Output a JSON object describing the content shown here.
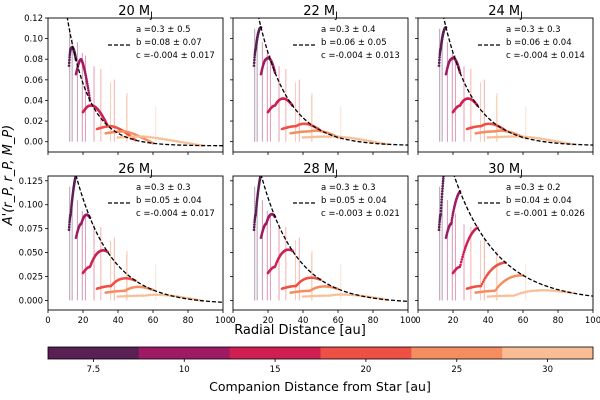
{
  "chart_data": {
    "type": "scatter",
    "figure": {
      "ylabel": "A'(r_P, r_P, M_P)",
      "xlabel": "Radial Distance [au]",
      "colorbar_label": "Companion Distance from Star [au]",
      "xlim": [
        0,
        100
      ],
      "xticks": [
        0,
        20,
        40,
        60,
        80,
        100
      ],
      "ylim_top_row": [
        -0.01,
        0.12
      ],
      "yticks_top_row": [
        "0.00",
        "0.02",
        "0.04",
        "0.06",
        "0.08",
        "0.10",
        "0.12"
      ],
      "ylim_bottom_row": [
        -0.01,
        0.13
      ],
      "yticks_bottom_row": [
        "0.000",
        "0.025",
        "0.050",
        "0.075",
        "0.100",
        "0.125"
      ],
      "legend_placement": "top-right of each panel"
    },
    "colorbar": {
      "ticks": [
        "7.5",
        "10",
        "15",
        "20",
        "25",
        "30"
      ],
      "colors": [
        "#5a1f53",
        "#9e1a63",
        "#cf1f52",
        "#ee5045",
        "#f68d60",
        "#f8bd95"
      ]
    },
    "panels": [
      {
        "title_num": "20",
        "title_sub": "J",
        "a": "a =0.3 ± 0.5",
        "b": "b =0.08 ± 0.07",
        "c": "c =-0.004 ± 0.017",
        "fit": {
          "a": 0.3,
          "b": 0.08,
          "c": -0.004
        }
      },
      {
        "title_num": "22",
        "title_sub": "J",
        "a": "a =0.3 ± 0.4",
        "b": "b =0.06 ± 0.05",
        "c": "c =-0.004 ± 0.013",
        "fit": {
          "a": 0.3,
          "b": 0.06,
          "c": -0.004
        }
      },
      {
        "title_num": "24",
        "title_sub": "J",
        "a": "a =0.3 ± 0.3",
        "b": "b =0.06 ± 0.04",
        "c": "c =-0.004 ± 0.014",
        "fit": {
          "a": 0.3,
          "b": 0.06,
          "c": -0.004
        }
      },
      {
        "title_num": "26",
        "title_sub": "J",
        "a": "a =0.3 ± 0.3",
        "b": "b =0.05 ± 0.04",
        "c": "c =-0.004 ± 0.017",
        "fit": {
          "a": 0.3,
          "b": 0.05,
          "c": -0.004
        }
      },
      {
        "title_num": "28",
        "title_sub": "J",
        "a": "a =0.3 ± 0.3",
        "b": "b =0.05 ± 0.04",
        "c": "c =-0.003 ± 0.021",
        "fit": {
          "a": 0.3,
          "b": 0.05,
          "c": -0.003
        }
      },
      {
        "title_num": "30",
        "title_sub": "J",
        "a": "a =0.3 ± 0.2",
        "b": "b =0.04 ± 0.04",
        "c": "c =-0.001 ± 0.026",
        "fit": {
          "a": 0.3,
          "b": 0.04,
          "c": -0.001
        }
      }
    ],
    "companion_series": [
      {
        "companion_au": 7.5,
        "color": "#5a1f53",
        "x_start": 12,
        "x_end": 16,
        "peak_x": 13,
        "peak": 0.09
      },
      {
        "companion_au": 10,
        "color": "#9e1a63",
        "x_start": 16,
        "x_end": 24,
        "peak_x": 19,
        "peak": 0.08
      },
      {
        "companion_au": 15,
        "color": "#cf1f52",
        "x_start": 20,
        "x_end": 34,
        "peak_x": 24,
        "peak": 0.035
      },
      {
        "companion_au": 20,
        "color": "#ee5045",
        "x_start": 28,
        "x_end": 50,
        "peak_x": 36,
        "peak": 0.015
      },
      {
        "companion_au": 25,
        "color": "#f68d60",
        "x_start": 33,
        "x_end": 60,
        "peak_x": 44,
        "peak": 0.01
      },
      {
        "companion_au": 30,
        "color": "#f8bd95",
        "x_start": 40,
        "x_end": 88,
        "peak_x": 55,
        "peak": 0.005
      }
    ]
  }
}
